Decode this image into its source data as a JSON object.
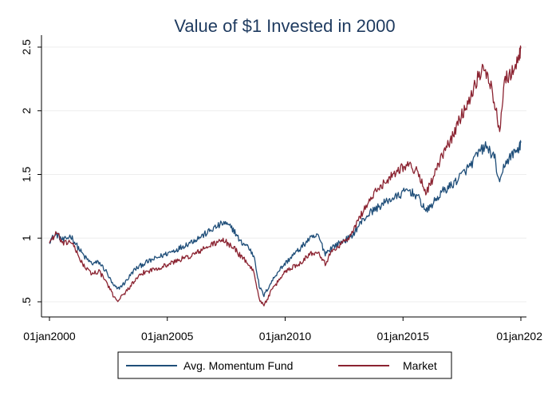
{
  "chart_data": {
    "type": "line",
    "title": "Value of $1 Invested in 2000",
    "xlabel": "",
    "ylabel": "",
    "x_ticks": [
      {
        "label": "01jan2000",
        "year": 2000
      },
      {
        "label": "01jan2005",
        "year": 2005
      },
      {
        "label": "01jan2010",
        "year": 2010
      },
      {
        "label": "01jan2015",
        "year": 2015
      },
      {
        "label": "01jan202",
        "year": 2020
      }
    ],
    "y_ticks": [
      {
        "label": ".5",
        "value": 0.5
      },
      {
        "label": "1",
        "value": 1.0
      },
      {
        "label": "1.5",
        "value": 1.5
      },
      {
        "label": "2",
        "value": 2.0
      },
      {
        "label": "2.5",
        "value": 2.5
      }
    ],
    "xlim": [
      2000,
      2020
    ],
    "ylim": [
      0.45,
      2.55
    ],
    "grid": true,
    "legend_position": "bottom",
    "colors": {
      "title": "#1e3a5f",
      "grid": "#eeeeee",
      "axis": "#000000",
      "legend_border": "#000000"
    },
    "series": [
      {
        "name": "Avg. Momentum Fund",
        "color": "#1f4e79",
        "x": [
          2000.0,
          2000.3,
          2000.6,
          2000.9,
          2001.2,
          2001.5,
          2001.8,
          2002.1,
          2002.4,
          2002.7,
          2002.9,
          2003.2,
          2003.6,
          2004.0,
          2004.5,
          2005.0,
          2005.5,
          2006.0,
          2006.5,
          2007.0,
          2007.4,
          2007.8,
          2008.1,
          2008.4,
          2008.7,
          2008.9,
          2009.1,
          2009.4,
          2009.7,
          2010.0,
          2010.3,
          2010.6,
          2011.0,
          2011.4,
          2011.7,
          2012.0,
          2012.4,
          2012.8,
          2013.2,
          2013.6,
          2014.0,
          2014.4,
          2014.8,
          2015.2,
          2015.6,
          2016.0,
          2016.3,
          2016.7,
          2017.1,
          2017.5,
          2017.9,
          2018.2,
          2018.5,
          2018.7,
          2018.9,
          2019.1,
          2019.3,
          2019.6,
          2019.9,
          2020.0
        ],
        "values": [
          0.98,
          1.03,
          0.98,
          1.02,
          0.93,
          0.85,
          0.8,
          0.81,
          0.74,
          0.63,
          0.6,
          0.65,
          0.75,
          0.8,
          0.84,
          0.88,
          0.92,
          0.97,
          1.02,
          1.08,
          1.12,
          1.07,
          0.97,
          0.94,
          0.85,
          0.62,
          0.55,
          0.65,
          0.74,
          0.8,
          0.86,
          0.91,
          0.99,
          1.02,
          0.88,
          0.93,
          0.97,
          1.01,
          1.12,
          1.2,
          1.25,
          1.3,
          1.33,
          1.38,
          1.33,
          1.21,
          1.28,
          1.37,
          1.42,
          1.5,
          1.58,
          1.67,
          1.72,
          1.68,
          1.62,
          1.41,
          1.58,
          1.65,
          1.7,
          1.75
        ]
      },
      {
        "name": "Market",
        "color": "#8b2331",
        "x": [
          2000.0,
          2000.3,
          2000.6,
          2000.9,
          2001.2,
          2001.5,
          2001.8,
          2002.1,
          2002.4,
          2002.7,
          2002.9,
          2003.2,
          2003.6,
          2004.0,
          2004.5,
          2005.0,
          2005.5,
          2006.0,
          2006.5,
          2007.0,
          2007.4,
          2007.8,
          2008.1,
          2008.4,
          2008.7,
          2008.9,
          2009.1,
          2009.4,
          2009.7,
          2010.0,
          2010.3,
          2010.6,
          2011.0,
          2011.4,
          2011.7,
          2012.0,
          2012.4,
          2012.8,
          2013.2,
          2013.6,
          2014.0,
          2014.4,
          2014.8,
          2015.2,
          2015.6,
          2016.0,
          2016.3,
          2016.7,
          2017.1,
          2017.5,
          2017.9,
          2018.2,
          2018.5,
          2018.7,
          2018.9,
          2019.1,
          2019.3,
          2019.6,
          2019.9,
          2020.0
        ],
        "values": [
          0.97,
          1.04,
          0.95,
          0.98,
          0.87,
          0.77,
          0.72,
          0.74,
          0.66,
          0.55,
          0.51,
          0.57,
          0.66,
          0.73,
          0.76,
          0.79,
          0.83,
          0.86,
          0.91,
          0.96,
          0.98,
          0.93,
          0.86,
          0.81,
          0.72,
          0.52,
          0.47,
          0.58,
          0.66,
          0.74,
          0.77,
          0.8,
          0.87,
          0.9,
          0.8,
          0.9,
          0.96,
          1.02,
          1.18,
          1.3,
          1.4,
          1.47,
          1.54,
          1.58,
          1.52,
          1.36,
          1.48,
          1.66,
          1.8,
          1.97,
          2.13,
          2.28,
          2.33,
          2.21,
          2.05,
          1.85,
          2.25,
          2.3,
          2.4,
          2.49
        ]
      }
    ]
  }
}
